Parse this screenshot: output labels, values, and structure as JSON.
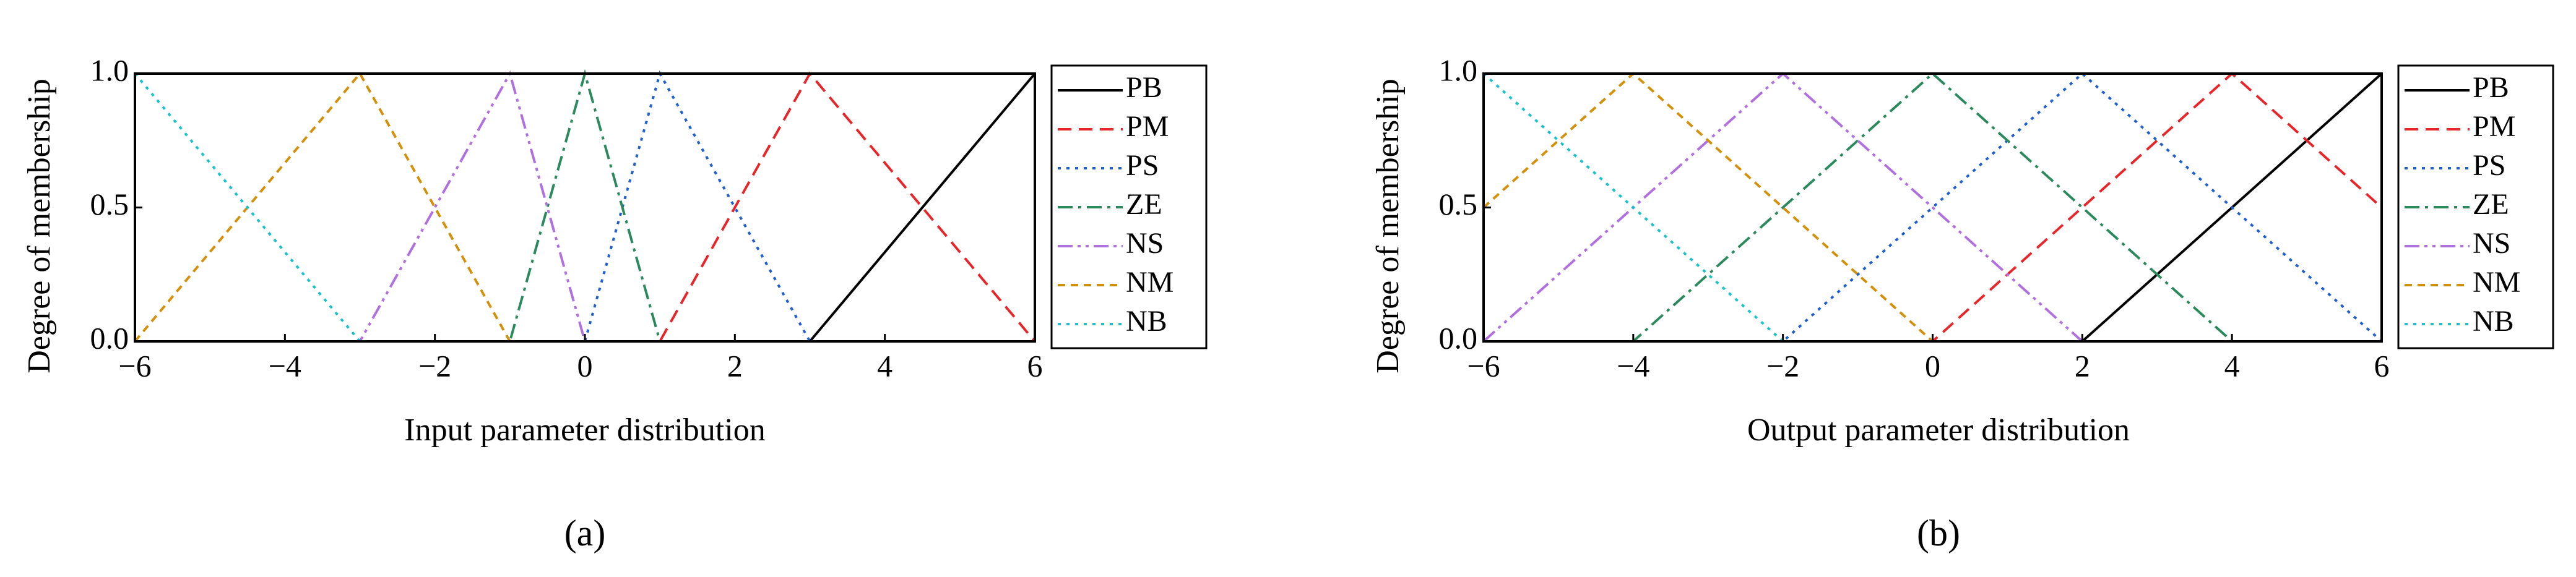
{
  "chart_data": [
    {
      "type": "line",
      "xlabel": "Input parameter distribution",
      "ylabel": "Degree of membership",
      "caption": "(a)",
      "x": [
        -6,
        -3,
        -1,
        0,
        1,
        3,
        6
      ],
      "series": [
        {
          "name": "PB",
          "color": "#000000",
          "linestyle": "solid",
          "values": [
            0,
            0,
            0,
            0,
            0,
            0,
            1
          ]
        },
        {
          "name": "PM",
          "color": "#e8262a",
          "linestyle": "dashed",
          "values": [
            0,
            0,
            0,
            0,
            0,
            1,
            0
          ]
        },
        {
          "name": "PS",
          "color": "#1f5fcf",
          "linestyle": "dotted",
          "values": [
            0,
            0,
            0,
            0,
            1,
            0,
            0
          ]
        },
        {
          "name": "ZE",
          "color": "#2a8a5c",
          "linestyle": "dashdot",
          "values": [
            0,
            0,
            0,
            1,
            0,
            0,
            0
          ]
        },
        {
          "name": "NS",
          "color": "#b070e0",
          "linestyle": "dashdotdot",
          "values": [
            0,
            0,
            1,
            0,
            0,
            0,
            0
          ]
        },
        {
          "name": "NM",
          "color": "#d4900a",
          "linestyle": "shortdash",
          "values": [
            0,
            1,
            0,
            0,
            0,
            0,
            0
          ]
        },
        {
          "name": "NB",
          "color": "#19c2cc",
          "linestyle": "dotted",
          "values": [
            1,
            0,
            0,
            0,
            0,
            0,
            0
          ]
        }
      ],
      "xlim": [
        -6,
        6
      ],
      "ylim": [
        0,
        1
      ],
      "xticks": [
        {
          "value": -6,
          "label": "−6"
        },
        {
          "value": -4,
          "label": "−4"
        },
        {
          "value": -2,
          "label": "−2"
        },
        0,
        2,
        4,
        6
      ],
      "yticks": [
        {
          "value": 0,
          "label": "0.0"
        },
        0.5,
        {
          "value": 1,
          "label": "1.0"
        }
      ],
      "legend": "outside-right"
    },
    {
      "type": "line",
      "xlabel": "Output parameter distribution",
      "ylabel": "Degree of membership",
      "caption": "(b)",
      "x": [
        -6,
        -4,
        -2,
        0,
        2,
        4,
        6
      ],
      "series": [
        {
          "name": "PB",
          "color": "#000000",
          "linestyle": "solid",
          "values": [
            0,
            0,
            0,
            0,
            0,
            0.5,
            1
          ]
        },
        {
          "name": "PM",
          "color": "#e8262a",
          "linestyle": "dashed",
          "values": [
            0,
            0,
            0,
            0,
            0.5,
            1,
            0.5
          ]
        },
        {
          "name": "PS",
          "color": "#1f5fcf",
          "linestyle": "dotted",
          "values": [
            0,
            0,
            0,
            0.5,
            1,
            0.5,
            0
          ]
        },
        {
          "name": "ZE",
          "color": "#2a8a5c",
          "linestyle": "dashdot",
          "values": [
            0,
            0,
            0.5,
            1,
            0.5,
            0,
            0
          ]
        },
        {
          "name": "NS",
          "color": "#b070e0",
          "linestyle": "dashdotdot",
          "values": [
            0,
            0.5,
            1,
            0.5,
            0,
            0,
            0
          ]
        },
        {
          "name": "NM",
          "color": "#d4900a",
          "linestyle": "shortdash",
          "values": [
            0.5,
            1,
            0.5,
            0,
            0,
            0,
            0
          ]
        },
        {
          "name": "NB",
          "color": "#19c2cc",
          "linestyle": "dotted",
          "values": [
            1,
            0.5,
            0,
            0,
            0,
            0,
            0
          ]
        }
      ],
      "xlim": [
        -6,
        6
      ],
      "ylim": [
        0,
        1
      ],
      "xticks": [
        {
          "value": -6,
          "label": "−6"
        },
        {
          "value": -4,
          "label": "−4"
        },
        {
          "value": -2,
          "label": "−2"
        },
        0,
        2,
        4,
        6
      ],
      "yticks": [
        {
          "value": 0,
          "label": "0.0"
        },
        0.5,
        {
          "value": 1,
          "label": "1.0"
        }
      ],
      "legend": "outside-right"
    }
  ]
}
